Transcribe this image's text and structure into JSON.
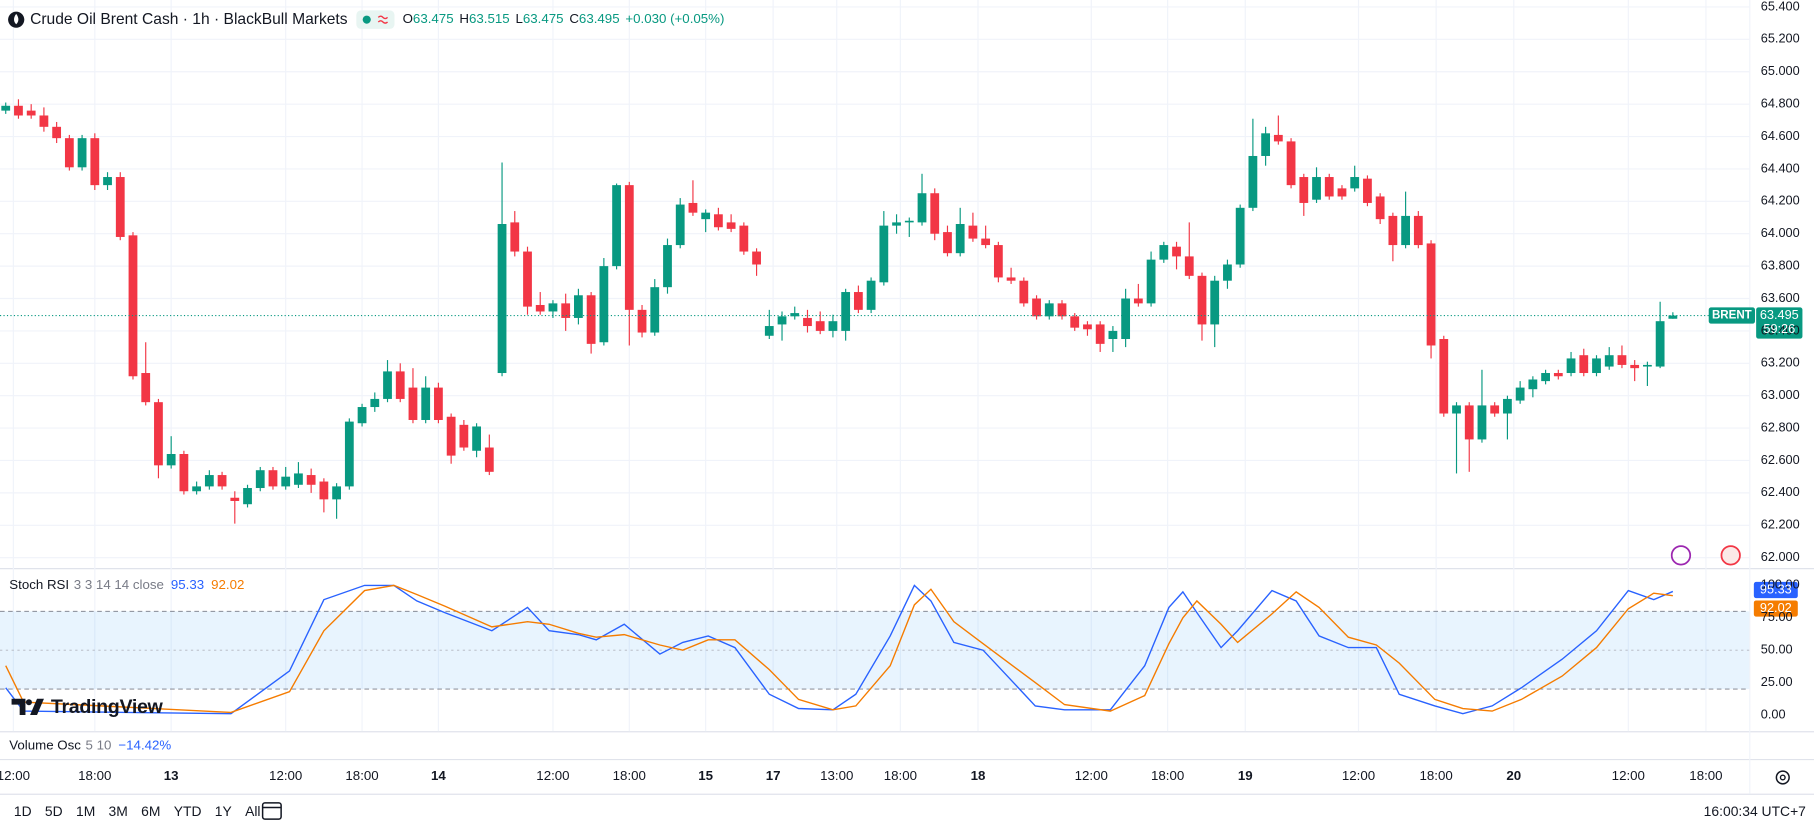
{
  "header": {
    "title": "Crude Oil Brent Cash · 1h · BlackBull Markets",
    "ohlc_letters": [
      "O",
      "H",
      "L",
      "C"
    ],
    "change": "+0.030 (+0.05%)"
  },
  "chart_data": [
    {
      "type": "candlestick",
      "symbol_tag": "BRENT",
      "countdown": "59:26",
      "up_color": "#089981",
      "down_color": "#f23645",
      "grid": true,
      "xlim": [
        -0.45,
        137
      ],
      "ylim": [
        61.943,
        65.443
      ],
      "yticks": [
        {
          "value": 62,
          "label": "62.000"
        },
        {
          "value": 62.2,
          "label": "62.200"
        },
        {
          "value": 62.4,
          "label": "62.400"
        },
        {
          "value": 62.6,
          "label": "62.600"
        },
        {
          "value": 62.8,
          "label": "62.800"
        },
        {
          "value": 63,
          "label": "63.000"
        },
        {
          "value": 63.2,
          "label": "63.200"
        },
        {
          "value": 63.4,
          "label": "63.400"
        },
        {
          "value": 63.6,
          "label": "63.600"
        },
        {
          "value": 63.8,
          "label": "63.800"
        },
        {
          "value": 64,
          "label": "64.000"
        },
        {
          "value": 64.2,
          "label": "64.200"
        },
        {
          "value": 64.4,
          "label": "64.400"
        },
        {
          "value": 64.6,
          "label": "64.600"
        },
        {
          "value": 64.8,
          "label": "64.800"
        },
        {
          "value": 65,
          "label": "65.000"
        },
        {
          "value": 65.2,
          "label": "65.200"
        },
        {
          "value": 65.4,
          "label": "65.400"
        }
      ],
      "xticks": [
        {
          "value": 0.6,
          "label": "12:00"
        },
        {
          "value": 7,
          "label": "18:00"
        },
        {
          "value": 13,
          "label": "13"
        },
        {
          "value": 22,
          "label": "12:00"
        },
        {
          "value": 28,
          "label": "18:00"
        },
        {
          "value": 34,
          "label": "14"
        },
        {
          "value": 43,
          "label": "12:00"
        },
        {
          "value": 49,
          "label": "18:00"
        },
        {
          "value": 55,
          "label": "15"
        },
        {
          "value": 60.3,
          "label": "17"
        },
        {
          "value": 65.3,
          "label": "13:00"
        },
        {
          "value": 70.3,
          "label": "18:00"
        },
        {
          "value": 76.4,
          "label": "18"
        },
        {
          "value": 85.3,
          "label": "12:00"
        },
        {
          "value": 91.3,
          "label": "18:00"
        },
        {
          "value": 97.4,
          "label": "19"
        },
        {
          "value": 106.3,
          "label": "12:00"
        },
        {
          "value": 112.4,
          "label": "18:00"
        },
        {
          "value": 118.5,
          "label": "20"
        },
        {
          "value": 127.5,
          "label": "12:00"
        },
        {
          "value": 133.6,
          "label": "18:00"
        }
      ],
      "ohlc": [
        [
          64.76,
          64.81,
          64.74,
          64.79
        ],
        [
          64.79,
          64.83,
          64.71,
          64.73
        ],
        [
          64.76,
          64.8,
          64.71,
          64.73
        ],
        [
          64.73,
          64.78,
          64.63,
          64.66
        ],
        [
          64.66,
          64.69,
          64.56,
          64.59
        ],
        [
          64.59,
          64.61,
          64.39,
          64.41
        ],
        [
          64.41,
          64.61,
          64.39,
          64.59
        ],
        [
          64.59,
          64.62,
          64.27,
          64.3
        ],
        [
          64.3,
          64.38,
          64.27,
          64.35
        ],
        [
          64.35,
          64.38,
          63.96,
          63.98
        ],
        [
          63.99,
          64.01,
          63.1,
          63.12
        ],
        [
          63.14,
          63.33,
          62.94,
          62.96
        ],
        [
          62.96,
          62.98,
          62.49,
          62.57
        ],
        [
          62.57,
          62.75,
          62.55,
          62.64
        ],
        [
          62.64,
          62.66,
          62.39,
          62.41
        ],
        [
          62.41,
          62.47,
          62.39,
          62.44
        ],
        [
          62.44,
          62.54,
          62.42,
          62.51
        ],
        [
          62.51,
          62.53,
          62.42,
          62.44
        ],
        [
          62.37,
          62.41,
          62.21,
          62.35
        ],
        [
          62.33,
          62.45,
          62.31,
          62.43
        ],
        [
          62.43,
          62.56,
          62.41,
          62.54
        ],
        [
          62.54,
          62.56,
          62.42,
          62.44
        ],
        [
          62.44,
          62.56,
          62.42,
          62.5
        ],
        [
          62.45,
          62.59,
          62.43,
          62.52
        ],
        [
          62.51,
          62.55,
          62.4,
          62.45
        ],
        [
          62.47,
          62.49,
          62.28,
          62.36
        ],
        [
          62.36,
          62.46,
          62.24,
          62.44
        ],
        [
          62.44,
          62.86,
          62.42,
          62.84
        ],
        [
          62.83,
          62.95,
          62.81,
          62.93
        ],
        [
          62.93,
          63.02,
          62.9,
          62.98
        ],
        [
          62.98,
          63.22,
          62.96,
          63.15
        ],
        [
          63.15,
          63.2,
          62.96,
          62.98
        ],
        [
          63.05,
          63.17,
          62.83,
          62.85
        ],
        [
          62.85,
          63.12,
          62.83,
          63.05
        ],
        [
          63.05,
          63.08,
          62.83,
          62.85
        ],
        [
          62.87,
          62.89,
          62.58,
          62.63
        ],
        [
          62.82,
          62.85,
          62.66,
          62.68
        ],
        [
          62.66,
          62.83,
          62.62,
          62.81
        ],
        [
          62.68,
          62.76,
          62.51,
          62.53
        ],
        [
          63.14,
          64.44,
          63.12,
          64.06
        ],
        [
          64.07,
          64.14,
          63.86,
          63.89
        ],
        [
          63.89,
          63.92,
          63.5,
          63.55
        ],
        [
          63.56,
          63.64,
          63.5,
          63.52
        ],
        [
          63.52,
          63.59,
          63.48,
          63.57
        ],
        [
          63.57,
          63.63,
          63.4,
          63.48
        ],
        [
          63.48,
          63.66,
          63.44,
          63.62
        ],
        [
          63.62,
          63.64,
          63.26,
          63.32
        ],
        [
          63.33,
          63.85,
          63.31,
          63.8
        ],
        [
          63.8,
          64.31,
          63.78,
          64.3
        ],
        [
          64.3,
          64.32,
          63.31,
          63.53
        ],
        [
          63.53,
          63.56,
          63.36,
          63.39
        ],
        [
          63.39,
          63.72,
          63.37,
          63.67
        ],
        [
          63.67,
          63.97,
          63.63,
          63.93
        ],
        [
          63.93,
          64.22,
          63.91,
          64.18
        ],
        [
          64.19,
          64.33,
          64.11,
          64.13
        ],
        [
          64.09,
          64.15,
          64.01,
          64.13
        ],
        [
          64.12,
          64.16,
          64.02,
          64.04
        ],
        [
          64.07,
          64.12,
          64.01,
          64.03
        ],
        [
          64.05,
          64.07,
          63.87,
          63.89
        ],
        [
          63.89,
          63.91,
          63.74,
          63.81
        ],
        [
          63.37,
          63.53,
          63.35,
          63.43
        ],
        [
          63.44,
          63.52,
          63.34,
          63.49
        ],
        [
          63.49,
          63.55,
          63.47,
          63.51
        ],
        [
          63.48,
          63.53,
          63.39,
          63.43
        ],
        [
          63.46,
          63.52,
          63.38,
          63.4
        ],
        [
          63.4,
          63.5,
          63.36,
          63.46
        ],
        [
          63.4,
          63.66,
          63.34,
          63.64
        ],
        [
          63.64,
          63.68,
          63.51,
          63.53
        ],
        [
          63.53,
          63.73,
          63.51,
          63.71
        ],
        [
          63.7,
          64.14,
          63.68,
          64.05
        ],
        [
          64.05,
          64.12,
          64,
          64.07
        ],
        [
          64.07,
          64.1,
          63.98,
          64.08
        ],
        [
          64.07,
          64.37,
          64.05,
          64.25
        ],
        [
          64.25,
          64.28,
          63.96,
          64
        ],
        [
          64.01,
          64.05,
          63.86,
          63.88
        ],
        [
          63.88,
          64.16,
          63.86,
          64.06
        ],
        [
          64.05,
          64.13,
          63.95,
          63.97
        ],
        [
          63.97,
          64.05,
          63.91,
          63.93
        ],
        [
          63.93,
          63.95,
          63.7,
          63.73
        ],
        [
          63.73,
          63.79,
          63.69,
          63.71
        ],
        [
          63.71,
          63.73,
          63.55,
          63.57
        ],
        [
          63.6,
          63.62,
          63.47,
          63.49
        ],
        [
          63.49,
          63.59,
          63.47,
          63.57
        ],
        [
          63.57,
          63.59,
          63.47,
          63.49
        ],
        [
          63.49,
          63.51,
          63.4,
          63.42
        ],
        [
          63.44,
          63.46,
          63.37,
          63.41
        ],
        [
          63.44,
          63.46,
          63.27,
          63.32
        ],
        [
          63.35,
          63.43,
          63.27,
          63.4
        ],
        [
          63.35,
          63.66,
          63.3,
          63.6
        ],
        [
          63.6,
          63.69,
          63.55,
          63.57
        ],
        [
          63.57,
          63.89,
          63.55,
          63.84
        ],
        [
          63.84,
          63.95,
          63.82,
          63.93
        ],
        [
          63.92,
          63.95,
          63.78,
          63.86
        ],
        [
          63.86,
          64.07,
          63.72,
          63.74
        ],
        [
          63.74,
          63.76,
          63.34,
          63.44
        ],
        [
          63.44,
          63.74,
          63.3,
          63.71
        ],
        [
          63.71,
          63.84,
          63.66,
          63.81
        ],
        [
          63.81,
          64.18,
          63.79,
          64.16
        ],
        [
          64.16,
          64.71,
          64.14,
          64.48
        ],
        [
          64.48,
          64.66,
          64.42,
          64.62
        ],
        [
          64.61,
          64.73,
          64.55,
          64.57
        ],
        [
          64.57,
          64.59,
          64.28,
          64.3
        ],
        [
          64.35,
          64.37,
          64.11,
          64.19
        ],
        [
          64.21,
          64.41,
          64.19,
          64.35
        ],
        [
          64.35,
          64.37,
          64.21,
          64.23
        ],
        [
          64.28,
          64.3,
          64.21,
          64.23
        ],
        [
          64.28,
          64.42,
          64.26,
          64.35
        ],
        [
          64.34,
          64.36,
          64.17,
          64.19
        ],
        [
          64.23,
          64.25,
          64.06,
          64.09
        ],
        [
          64.11,
          64.13,
          63.83,
          63.93
        ],
        [
          63.93,
          64.26,
          63.91,
          64.11
        ],
        [
          64.11,
          64.14,
          63.91,
          63.93
        ],
        [
          63.94,
          63.96,
          63.23,
          63.31
        ],
        [
          63.35,
          63.37,
          62.87,
          62.89
        ],
        [
          62.89,
          62.96,
          62.52,
          62.94
        ],
        [
          62.94,
          62.96,
          62.53,
          62.73
        ],
        [
          62.73,
          63.16,
          62.71,
          62.94
        ],
        [
          62.94,
          62.96,
          62.87,
          62.89
        ],
        [
          62.89,
          63,
          62.73,
          62.98
        ],
        [
          62.97,
          63.09,
          62.95,
          63.05
        ],
        [
          63.04,
          63.12,
          62.99,
          63.1
        ],
        [
          63.09,
          63.16,
          63.07,
          63.14
        ],
        [
          63.14,
          63.16,
          63.1,
          63.12
        ],
        [
          63.14,
          63.27,
          63.12,
          63.23
        ],
        [
          63.25,
          63.29,
          63.12,
          63.14
        ],
        [
          63.14,
          63.25,
          63.12,
          63.23
        ],
        [
          63.18,
          63.3,
          63.16,
          63.25
        ],
        [
          63.25,
          63.31,
          63.17,
          63.19
        ],
        [
          63.19,
          63.22,
          63.09,
          63.17
        ],
        [
          63.18,
          63.21,
          63.06,
          63.19
        ],
        [
          63.18,
          63.58,
          63.17,
          63.46
        ],
        [
          63.475,
          63.515,
          63.475,
          63.495
        ]
      ]
    },
    {
      "type": "line",
      "title": "Stoch RSI",
      "params": "3 3 14 14 close",
      "xlim": [
        -0.45,
        137
      ],
      "ylim": [
        -12.5,
        110.7
      ],
      "yticks": [
        {
          "value": 0,
          "label": "0.00"
        },
        {
          "value": 25,
          "label": "25.00"
        },
        {
          "value": 50,
          "label": "50.00"
        },
        {
          "value": 75,
          "label": "75.00"
        },
        {
          "value": 100,
          "label": "100.00"
        }
      ],
      "levels": [
        80,
        50,
        20
      ],
      "band_color": "rgba(33,150,243,0.1)",
      "x": [
        0,
        1.4,
        17.7,
        22.3,
        25,
        28.2,
        30.5,
        32.3,
        34.5,
        38.2,
        41,
        42.7,
        45,
        46.4,
        48.6,
        51.4,
        53.2,
        55.2,
        57.3,
        60,
        62.3,
        65,
        66.8,
        69.5,
        71.4,
        72.7,
        74.5,
        76.8,
        80.9,
        83.2,
        86.8,
        89.5,
        91.4,
        92.5,
        93.6,
        95.5,
        96.8,
        99.5,
        101.4,
        103.2,
        105.5,
        107.7,
        109.5,
        112.3,
        114.5,
        116.8,
        119.1,
        122.3,
        125,
        127.5,
        129.5,
        131
      ],
      "series": [
        {
          "color": "#2962ff",
          "values": [
            21,
            3,
            1,
            34,
            89,
            100,
            100,
            88,
            79,
            65,
            83,
            65,
            62,
            58,
            70,
            47,
            56,
            61,
            52,
            16,
            5,
            4,
            16,
            61,
            100,
            88,
            56,
            50,
            7,
            4,
            4,
            38,
            83,
            95,
            79,
            52,
            65,
            96,
            88,
            61,
            52,
            52,
            16,
            7,
            1,
            7,
            21,
            43,
            65,
            96,
            89,
            95.33
          ]
        },
        {
          "color": "#f57c00",
          "values": [
            38,
            10,
            2,
            18,
            65,
            96,
            100,
            93,
            84,
            68,
            72,
            70,
            63,
            60,
            62,
            54,
            50,
            58,
            58,
            35,
            12,
            4,
            7,
            38,
            85,
            97,
            72,
            55,
            25,
            8,
            3,
            15,
            55,
            75,
            88,
            70,
            56,
            78,
            95,
            83,
            60,
            54,
            40,
            12,
            5,
            3,
            12,
            30,
            52,
            82,
            94,
            92.02
          ]
        }
      ]
    }
  ],
  "volume_osc": {
    "title": "Volume Osc",
    "params": "5 10",
    "value": "−14.42%"
  },
  "logo": "TradingView",
  "toolbar": {
    "ranges": [
      "1D",
      "5D",
      "1M",
      "3M",
      "6M",
      "YTD",
      "1Y",
      "All"
    ],
    "clock": "16:00:34 UTC+7"
  }
}
